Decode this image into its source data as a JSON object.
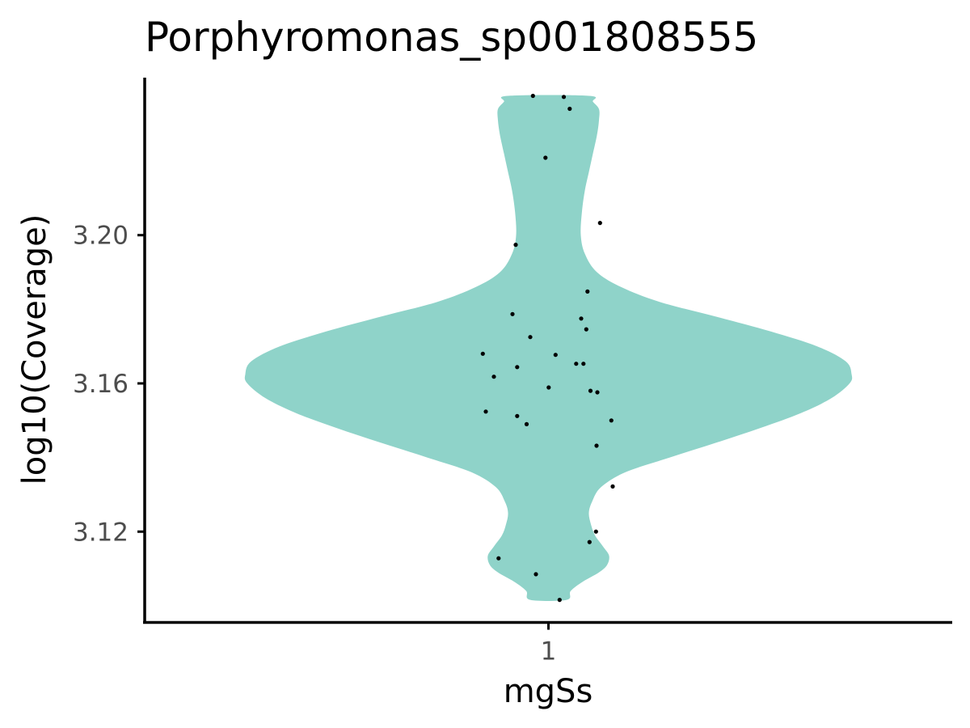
{
  "chart_data": {
    "type": "violin",
    "title": "Porphyromonas_sp001808555",
    "xlabel": "mgSs",
    "ylabel": "log10(Coverage)",
    "categories": [
      "1"
    ],
    "ylim": [
      3.0955,
      3.2425
    ],
    "yticks": [
      3.12,
      3.16,
      3.2
    ],
    "ytick_labels": [
      "3.12",
      "3.16",
      "3.20"
    ],
    "grid": false,
    "legend": "none",
    "fill_color": "#8fd3c9",
    "point_color": "#000000",
    "violin": {
      "y_min": 3.1016,
      "y_max": 3.2376,
      "density_profile": [
        {
          "y": 3.1016,
          "w": 0.09
        },
        {
          "y": 3.104,
          "w": 0.11
        },
        {
          "y": 3.1065,
          "w": 0.17
        },
        {
          "y": 3.109,
          "w": 0.25
        },
        {
          "y": 3.111,
          "w": 0.29
        },
        {
          "y": 3.1135,
          "w": 0.3
        },
        {
          "y": 3.116,
          "w": 0.27
        },
        {
          "y": 3.119,
          "w": 0.23
        },
        {
          "y": 3.122,
          "w": 0.21
        },
        {
          "y": 3.125,
          "w": 0.2
        },
        {
          "y": 3.128,
          "w": 0.215
        },
        {
          "y": 3.132,
          "w": 0.26
        },
        {
          "y": 3.136,
          "w": 0.38
        },
        {
          "y": 3.14,
          "w": 0.6
        },
        {
          "y": 3.144,
          "w": 0.83
        },
        {
          "y": 3.148,
          "w": 1.05
        },
        {
          "y": 3.152,
          "w": 1.25
        },
        {
          "y": 3.156,
          "w": 1.4
        },
        {
          "y": 3.16,
          "w": 1.49
        },
        {
          "y": 3.1625,
          "w": 1.5
        },
        {
          "y": 3.166,
          "w": 1.47
        },
        {
          "y": 3.17,
          "w": 1.33
        },
        {
          "y": 3.174,
          "w": 1.1
        },
        {
          "y": 3.178,
          "w": 0.83
        },
        {
          "y": 3.182,
          "w": 0.55
        },
        {
          "y": 3.186,
          "w": 0.36
        },
        {
          "y": 3.19,
          "w": 0.24
        },
        {
          "y": 3.195,
          "w": 0.18
        },
        {
          "y": 3.2,
          "w": 0.16
        },
        {
          "y": 3.206,
          "w": 0.165
        },
        {
          "y": 3.212,
          "w": 0.18
        },
        {
          "y": 3.217,
          "w": 0.2
        },
        {
          "y": 3.222,
          "w": 0.22
        },
        {
          "y": 3.227,
          "w": 0.24
        },
        {
          "y": 3.231,
          "w": 0.25
        },
        {
          "y": 3.234,
          "w": 0.25
        },
        {
          "y": 3.236,
          "w": 0.22
        },
        {
          "y": 3.2376,
          "w": 0.2
        }
      ]
    },
    "points": [
      {
        "x": 0.923,
        "y": 3.2376
      },
      {
        "x": 1.076,
        "y": 3.2373
      },
      {
        "x": 1.105,
        "y": 3.2341
      },
      {
        "x": 0.985,
        "y": 3.2209
      },
      {
        "x": 1.255,
        "y": 3.2033
      },
      {
        "x": 0.838,
        "y": 3.1974
      },
      {
        "x": 1.193,
        "y": 3.1848
      },
      {
        "x": 0.822,
        "y": 3.1787
      },
      {
        "x": 1.162,
        "y": 3.1775
      },
      {
        "x": 1.187,
        "y": 3.1746
      },
      {
        "x": 0.91,
        "y": 3.1725
      },
      {
        "x": 0.675,
        "y": 3.168
      },
      {
        "x": 1.035,
        "y": 3.1677
      },
      {
        "x": 1.137,
        "y": 3.1653
      },
      {
        "x": 1.173,
        "y": 3.1653
      },
      {
        "x": 0.845,
        "y": 3.1644
      },
      {
        "x": 0.73,
        "y": 3.1618
      },
      {
        "x": 1.001,
        "y": 3.1589
      },
      {
        "x": 1.208,
        "y": 3.158
      },
      {
        "x": 1.242,
        "y": 3.1576
      },
      {
        "x": 0.69,
        "y": 3.1524
      },
      {
        "x": 0.845,
        "y": 3.1512
      },
      {
        "x": 1.311,
        "y": 3.15
      },
      {
        "x": 0.892,
        "y": 3.149
      },
      {
        "x": 1.238,
        "y": 3.1432
      },
      {
        "x": 1.318,
        "y": 3.1322
      },
      {
        "x": 1.235,
        "y": 3.12
      },
      {
        "x": 1.203,
        "y": 3.1172
      },
      {
        "x": 0.753,
        "y": 3.1128
      },
      {
        "x": 0.938,
        "y": 3.1085
      },
      {
        "x": 1.055,
        "y": 3.1016
      }
    ]
  }
}
